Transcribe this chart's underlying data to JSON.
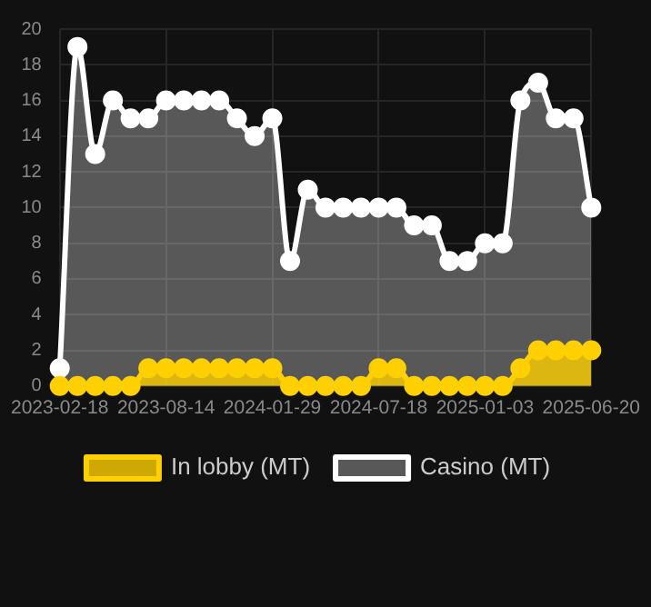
{
  "chart_data": {
    "type": "area",
    "categories": [
      "2023-02-18",
      null,
      null,
      null,
      null,
      null,
      "2023-08-14",
      null,
      null,
      null,
      null,
      null,
      "2024-01-29",
      null,
      null,
      null,
      null,
      null,
      "2024-07-18",
      null,
      null,
      null,
      null,
      null,
      "2025-01-03",
      null,
      null,
      null,
      null,
      null,
      "2025-06-20"
    ],
    "series": [
      {
        "name": "In lobby (MT)",
        "color": "#ffd000",
        "values": [
          0,
          0,
          0,
          0,
          0,
          1,
          1,
          1,
          1,
          1,
          1,
          1,
          1,
          0,
          0,
          0,
          0,
          0,
          1,
          1,
          0,
          0,
          0,
          0,
          0,
          0,
          1,
          2,
          2,
          2,
          2
        ]
      },
      {
        "name": "Casino (MT)",
        "color": "#ffffff",
        "values": [
          1,
          19,
          13,
          16,
          15,
          15,
          16,
          16,
          16,
          16,
          15,
          14,
          15,
          7,
          11,
          10,
          10,
          10,
          10,
          10,
          9,
          9,
          7,
          7,
          8,
          8,
          16,
          17,
          15,
          15,
          10
        ]
      }
    ],
    "ylim": [
      0,
      20
    ],
    "yticks": [
      0,
      2,
      4,
      6,
      8,
      10,
      12,
      14,
      16,
      18,
      20
    ],
    "grid": true,
    "legend": "bottom",
    "marker": "circle",
    "line_style": "solid"
  }
}
